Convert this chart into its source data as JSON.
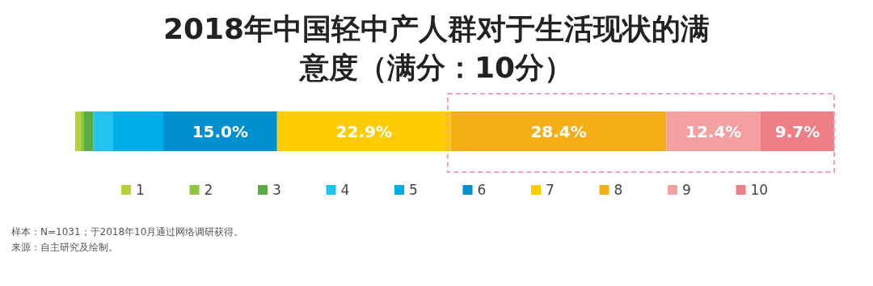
{
  "chart_data": {
    "type": "bar",
    "title": "2018年中国轻中产人群对于生活现状的满意度（满分：10分）",
    "orientation": "horizontal",
    "stacked": true,
    "categories": [
      null
    ],
    "xlim": [
      0,
      100
    ],
    "legend": "bottom",
    "series": [
      {
        "name": "1",
        "color": "#b3d235",
        "values": [
          0.7
        ],
        "value_labels": [
          null
        ]
      },
      {
        "name": "2",
        "color": "#8dc63f",
        "values": [
          0.4
        ],
        "value_labels": [
          null
        ]
      },
      {
        "name": "3",
        "color": "#5aaa46",
        "values": [
          1.3
        ],
        "value_labels": [
          null
        ]
      },
      {
        "name": "4",
        "color": "#22c4ef",
        "values": [
          2.6
        ],
        "value_labels": [
          null
        ]
      },
      {
        "name": "5",
        "color": "#00aee6",
        "values": [
          6.6
        ],
        "value_labels": [
          null
        ]
      },
      {
        "name": "6",
        "color": "#0090d0",
        "values": [
          15.0
        ],
        "value_labels": [
          "15.0%"
        ]
      },
      {
        "name": "7",
        "color": "#ffcc00",
        "values": [
          22.9
        ],
        "value_labels": [
          "22.9%"
        ]
      },
      {
        "name": "8",
        "color": "#f6ae17",
        "values": [
          28.4
        ],
        "value_labels": [
          "28.4%"
        ]
      },
      {
        "name": "9",
        "color": "#f4a0a0",
        "values": [
          12.4
        ],
        "value_labels": [
          "12.4%"
        ]
      },
      {
        "name": "10",
        "color": "#ef7f86",
        "values": [
          9.7
        ],
        "value_labels": [
          "9.7%"
        ]
      }
    ],
    "annotations": [
      "样本：N=1031；于2018年10月通过网络调研获得。",
      "来源：自主研究及绘制。"
    ]
  }
}
